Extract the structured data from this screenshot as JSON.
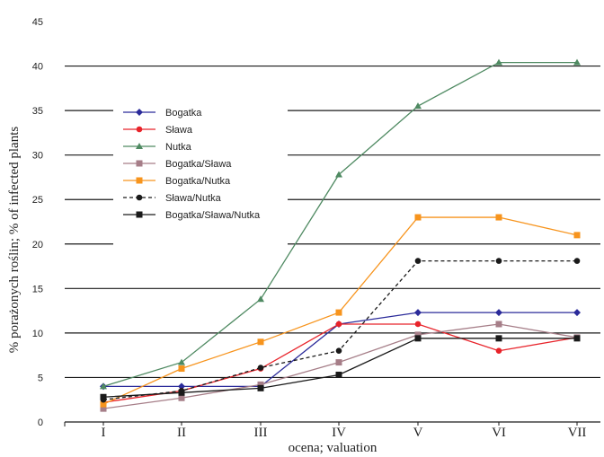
{
  "chart_data": {
    "type": "line",
    "title": "",
    "xlabel": "ocena; valuation",
    "ylabel": "% porażonych roślin; % of infected plants",
    "categories": [
      "I",
      "II",
      "III",
      "IV",
      "V",
      "VI",
      "VII"
    ],
    "y_ticks": [
      "0",
      "5",
      "10",
      "15",
      "20",
      "25",
      "30",
      "35",
      "40",
      "45"
    ],
    "ylim": [
      0,
      45
    ],
    "grid": "horizontal",
    "legend_position": "left",
    "series": [
      {
        "name": "Bogatka",
        "color": "#2b2b9a",
        "marker": "diamond",
        "dash": false,
        "values": [
          4,
          4,
          4,
          11,
          12.3,
          12.3,
          12.3
        ]
      },
      {
        "name": "Sława",
        "color": "#e8232a",
        "marker": "circle",
        "dash": false,
        "values": [
          2.2,
          3.5,
          6,
          11,
          11,
          8,
          9.5
        ]
      },
      {
        "name": "Nutka",
        "color": "#4f8a62",
        "marker": "triangle",
        "dash": false,
        "values": [
          4,
          6.7,
          13.8,
          27.8,
          35.5,
          40.4,
          40.4
        ]
      },
      {
        "name": "Bogatka/Sława",
        "color": "#a67e88",
        "marker": "square",
        "dash": false,
        "values": [
          1.5,
          2.7,
          4.2,
          6.7,
          9.8,
          11,
          9.5
        ]
      },
      {
        "name": "Bogatka/Nutka",
        "color": "#f7941d",
        "marker": "square",
        "dash": false,
        "values": [
          2,
          6,
          9,
          12.3,
          23,
          23,
          21
        ]
      },
      {
        "name": "Sława/Nutka",
        "color": "#1a1a1a",
        "marker": "circle",
        "dash": true,
        "values": [
          2.5,
          3.5,
          6.1,
          8,
          18.1,
          18.1,
          18.1
        ]
      },
      {
        "name": "Bogatka/Sława/Nutka",
        "color": "#1a1a1a",
        "marker": "square",
        "dash": false,
        "values": [
          2.8,
          3.3,
          3.8,
          5.3,
          9.4,
          9.4,
          9.4
        ]
      }
    ]
  }
}
